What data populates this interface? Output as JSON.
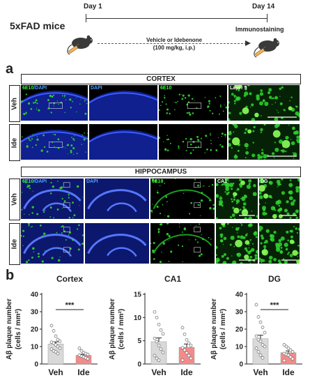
{
  "schematic": {
    "model": "5xFAD mice",
    "day_start": "Day 1",
    "day_end": "Day 14",
    "treatment_line1": "Vehicle or Idebenone",
    "treatment_line2": "(100 mg/kg, i.p.)",
    "endpoint": "Immunostaining"
  },
  "panel_a": {
    "letter": "a",
    "cortex_title": "CORTEX",
    "hippocampus_title": "HIPPOCAMPUS",
    "rows": [
      "Veh",
      "Ide"
    ],
    "cortex_columns": [
      {
        "label_a": "6E10",
        "label_b": "/DAPI"
      },
      {
        "label_a": "",
        "label_b": "DAPI"
      },
      {
        "label_a": "6E10",
        "label_b": ""
      },
      {
        "label_a": "",
        "label_b": "Layer 5"
      }
    ],
    "hippocampus_columns": [
      {
        "label_a": "6E10",
        "label_b": "/DAPI"
      },
      {
        "label_a": "",
        "label_b": "DAPI"
      },
      {
        "label_a": "6E10",
        "label_b": ""
      },
      {
        "label_a": "",
        "label_b": "CA1"
      },
      {
        "label_a": "",
        "label_b": "DG"
      }
    ],
    "colors": {
      "green": "#2fd62f",
      "blue": "#2a43ff",
      "green_label": "#33ff33",
      "blue_label": "#4aa3ff"
    }
  },
  "panel_b": {
    "letter": "b",
    "ylabel_line1": "Aβ plaque number",
    "ylabel_line2": "(cells / mm²)",
    "significance": "***"
  },
  "chart_data": [
    {
      "type": "bar",
      "title": "Cortex",
      "categories": [
        "Veh",
        "Ide"
      ],
      "values": [
        11.5,
        5.0
      ],
      "errors": [
        1.2,
        0.6
      ],
      "ylim": [
        0,
        40
      ],
      "yticks": [
        0,
        10,
        20,
        30,
        40
      ],
      "significance": "***",
      "points": [
        [
          22,
          19,
          16,
          14,
          13,
          12.5,
          12,
          11,
          10,
          9,
          8.5,
          7.5,
          7,
          6
        ],
        [
          9,
          7.5,
          6.5,
          6,
          5.5,
          5,
          4.5,
          4,
          3.5,
          3
        ]
      ],
      "bar_colors": [
        "#d9d9d9",
        "#f28b8b"
      ]
    },
    {
      "type": "bar",
      "title": "CA1",
      "categories": [
        "Veh",
        "Ide"
      ],
      "values": [
        4.8,
        3.6
      ],
      "errors": [
        0.8,
        0.7
      ],
      "ylim": [
        0,
        15
      ],
      "yticks": [
        0,
        5,
        10,
        15
      ],
      "significance": "",
      "points": [
        [
          11.2,
          10,
          8.5,
          7.3,
          6.5,
          5.5,
          4.8,
          4,
          3.2,
          2.5,
          1.8,
          1.2,
          0.8
        ],
        [
          7.8,
          6.4,
          5.2,
          4.5,
          4,
          3.5,
          3,
          2.4,
          1.8,
          1.2,
          0.8
        ]
      ],
      "bar_colors": [
        "#d9d9d9",
        "#f28b8b"
      ]
    },
    {
      "type": "bar",
      "title": "DG",
      "categories": [
        "Veh",
        "Ide"
      ],
      "values": [
        14.5,
        6.5
      ],
      "errors": [
        2.0,
        1.0
      ],
      "ylim": [
        0,
        40
      ],
      "yticks": [
        0,
        10,
        20,
        30,
        40
      ],
      "significance": "***",
      "points": [
        [
          34,
          27,
          24,
          21,
          18,
          16,
          14,
          13,
          11,
          10,
          9,
          7,
          5,
          3.5
        ],
        [
          11,
          10,
          9,
          8,
          7,
          6,
          5.5,
          5,
          4,
          3,
          2
        ]
      ],
      "bar_colors": [
        "#d9d9d9",
        "#f28b8b"
      ]
    }
  ]
}
